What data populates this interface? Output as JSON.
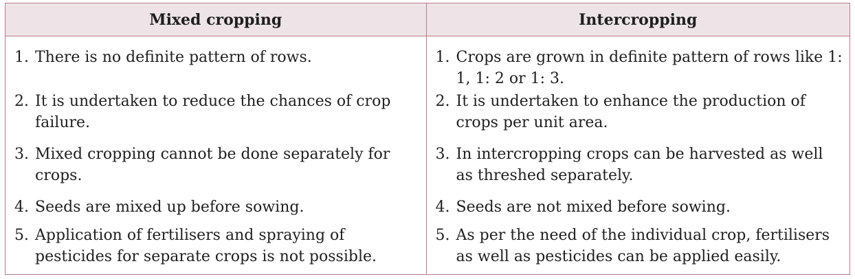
{
  "headers": {
    "left": "Mixed cropping",
    "right": "Intercropping"
  },
  "rows": [
    {
      "left": {
        "num": "1.",
        "text": "There is no definite pattern of rows."
      },
      "right": {
        "num": "1.",
        "text": "Crops are grown in definite pattern of rows like 1: 1, 1: 2 or 1: 3."
      }
    },
    {
      "left": {
        "num": "2.",
        "text": "It is undertaken to reduce the chances of crop failure."
      },
      "right": {
        "num": "2.",
        "text": "It is undertaken to enhance the production of crops per unit area."
      }
    },
    {
      "left": {
        "num": "3.",
        "text": "Mixed cropping cannot be done separately for crops."
      },
      "right": {
        "num": "3.",
        "text": "In intercropping crops can be harvested as well as threshed separately."
      }
    },
    {
      "left": {
        "num": "4.",
        "text": "Seeds are mixed up before sowing."
      },
      "right": {
        "num": "4.",
        "text": "Seeds are not mixed before sowing."
      }
    },
    {
      "left": {
        "num": "5.",
        "text": "Application of fertilisers and spraying of pesticides for separate crops is not possible."
      },
      "right": {
        "num": "5.",
        "text": "As per the need of the individual crop, fertilisers as well as pesticides can be applied easily."
      }
    }
  ],
  "colors": {
    "border": "#b87b86",
    "header_bg": "#eee4e7"
  }
}
